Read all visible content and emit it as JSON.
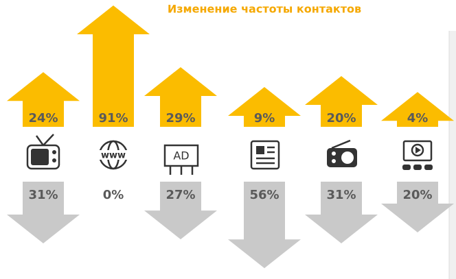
{
  "chart_data": {
    "type": "arrow",
    "title": "Изменение частоты контактов",
    "series": [
      {
        "color": "#fbbc00",
        "values": [
          24,
          91,
          29,
          9,
          20,
          4
        ],
        "value_labels": [
          "24%",
          "91%",
          "29%",
          "9%",
          "20%",
          "4%"
        ]
      },
      {
        "color": "#c9c9c9",
        "values": [
          31,
          0,
          27,
          56,
          31,
          20
        ],
        "value_labels": [
          "31%",
          "0%",
          "27%",
          "56%",
          "31%",
          "20%"
        ]
      }
    ]
  }
}
